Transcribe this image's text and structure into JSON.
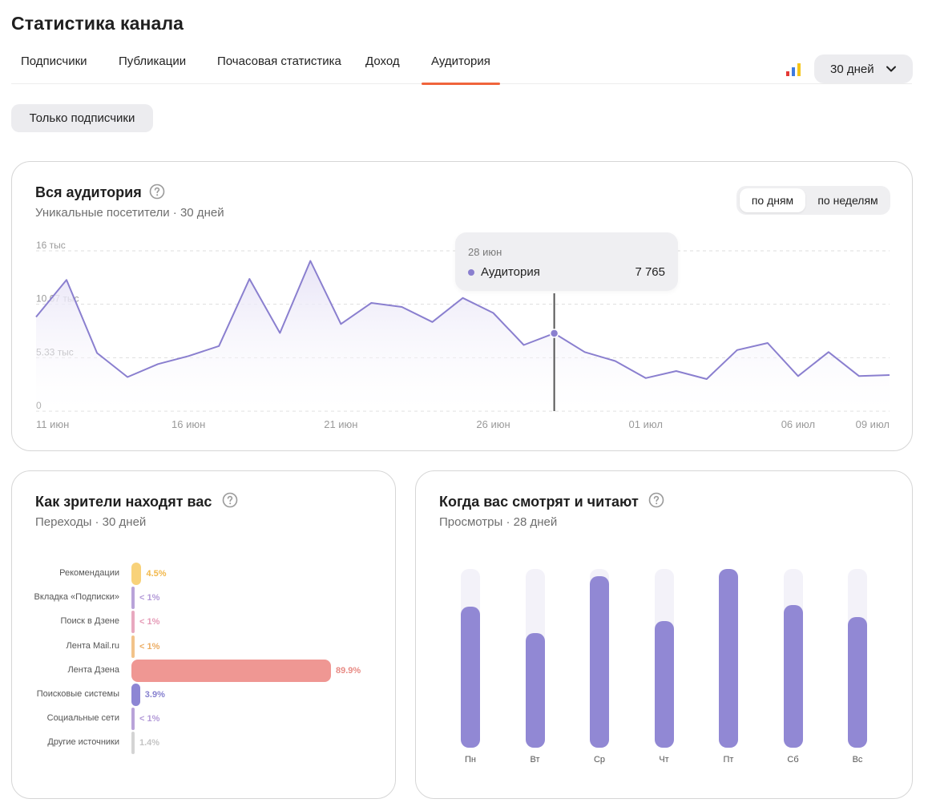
{
  "header": {
    "title": "Статистика канала",
    "tabs": [
      {
        "label": "Подписчики",
        "active": false
      },
      {
        "label": "Публикации",
        "active": false
      },
      {
        "label": "Почасовая статистика",
        "active": false
      },
      {
        "label": "Доход",
        "active": false
      },
      {
        "label": "Аудитория",
        "active": true
      }
    ],
    "period": "30 дней",
    "chart_icon": "bar-chart-icon"
  },
  "filter": {
    "label": "Только подписчики"
  },
  "audience": {
    "title": "Вся аудитория",
    "subtitle": "Уникальные посетители · 30 дней",
    "toggle": {
      "days": "по дням",
      "weeks": "по неделям",
      "selected": "days"
    },
    "tooltip": {
      "date": "28 июн",
      "series": "Аудитория",
      "value": "7 765"
    }
  },
  "sources": {
    "title": "Как зрители находят вас",
    "subtitle": "Переходы · 30 дней"
  },
  "weekdays": {
    "title": "Когда вас смотрят и читают",
    "subtitle": "Просмотры · 28 дней"
  },
  "colors": {
    "accent": "#f0643c",
    "line": "#8a7fcf",
    "area": "#e7e3f6",
    "recommend": "#f8d27a",
    "subs": "#b9a3d9",
    "dzen_search": "#e8a9bf",
    "mail": "#f2c38a",
    "dzen_feed": "#ef9793",
    "search": "#8d86d4",
    "social": "#b9a3d9",
    "other": "#d4d4d4"
  },
  "chart_data": [
    {
      "type": "area",
      "yticks": [
        "16 тыс",
        "10.67 тыс",
        "5.33 тыс",
        "0"
      ],
      "ylim": [
        0,
        16000
      ],
      "xticks": [
        "11 июн",
        "16 июн",
        "21 июн",
        "26 июн",
        "01 июл",
        "06 июл",
        "09 июл"
      ],
      "x": [
        "11 июн",
        "12 июн",
        "13 июн",
        "14 июн",
        "15 июн",
        "16 июн",
        "17 июн",
        "18 июн",
        "19 июн",
        "20 июн",
        "21 июн",
        "22 июн",
        "23 июн",
        "24 июн",
        "25 июн",
        "26 июн",
        "27 июн",
        "28 июн",
        "29 июн",
        "30 июн",
        "01 июл",
        "02 июл",
        "03 июл",
        "04 июл",
        "05 июл",
        "06 июл",
        "07 июл",
        "08 июл",
        "09 июл"
      ],
      "series": [
        {
          "name": "Аудитория",
          "values": [
            9400,
            13100,
            5800,
            3400,
            4700,
            5500,
            6500,
            13200,
            7800,
            15000,
            8700,
            10800,
            10400,
            8900,
            11300,
            9800,
            6600,
            7765,
            5900,
            5000,
            3300,
            4000,
            3200,
            6100,
            6800,
            3500,
            5900,
            3500,
            3600
          ]
        }
      ]
    },
    {
      "type": "bar",
      "orientation": "horizontal",
      "categories": [
        "Рекомендации",
        "Вкладка «Подписки»",
        "Поиск в Дзене",
        "Лента Mail.ru",
        "Лента Дзена",
        "Поисковые системы",
        "Социальные сети",
        "Другие источники"
      ],
      "value_labels": [
        "4.5%",
        "< 1%",
        "< 1%",
        "< 1%",
        "89.9%",
        "3.9%",
        "< 1%",
        "1.4%"
      ],
      "values": [
        4.5,
        0.5,
        0.5,
        0.5,
        89.9,
        3.9,
        0.5,
        1.4
      ],
      "colors": [
        "#f8d27a",
        "#b9a3d9",
        "#e8a9bf",
        "#f2c38a",
        "#ef9793",
        "#8d86d4",
        "#b9a3d9",
        "#d4d4d4"
      ],
      "label_colors": [
        "#f2b84b",
        "#b39ad8",
        "#e59ab6",
        "#ecac62",
        "#e88b85",
        "#8680cf",
        "#b39ad8",
        "#c4c4c4"
      ]
    },
    {
      "type": "bar",
      "categories": [
        "Пн",
        "Вт",
        "Ср",
        "Чт",
        "Пт",
        "Сб",
        "Вс"
      ],
      "values": [
        0.79,
        0.64,
        0.96,
        0.71,
        1.0,
        0.8,
        0.73
      ],
      "ylim": [
        0,
        1
      ]
    }
  ]
}
